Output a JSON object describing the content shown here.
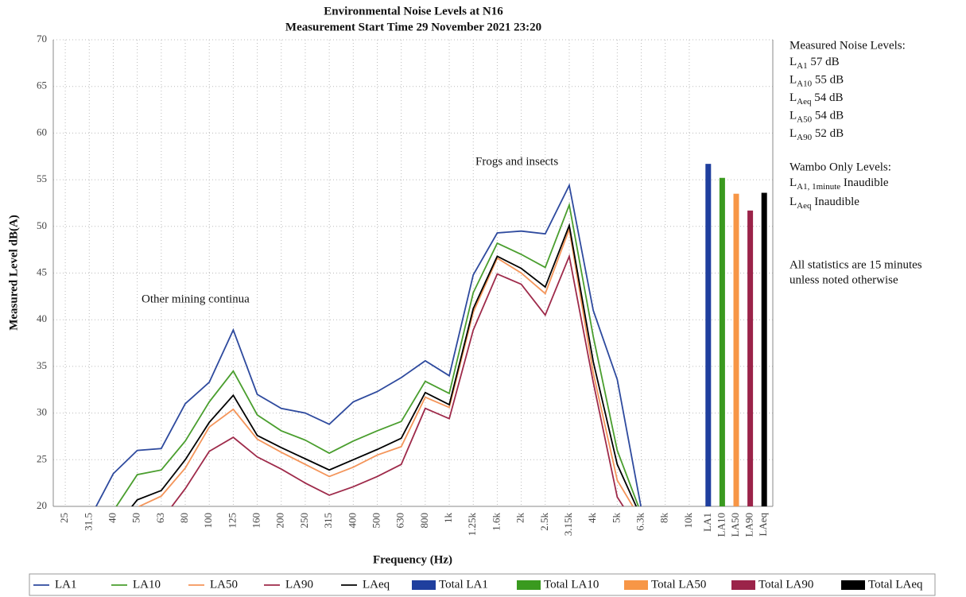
{
  "chart_data": {
    "type": "line",
    "title": "Environmental Noise Levels at N16",
    "subtitle": "Measurement Start Time 29 November 2021 23:20",
    "y_label": "Measured Level dB(A)",
    "x_label": "Frequency (Hz)",
    "categories": [
      "25",
      "31.5",
      "40",
      "50",
      "63",
      "80",
      "100",
      "125",
      "160",
      "200",
      "250",
      "315",
      "400",
      "500",
      "630",
      "800",
      "1k",
      "1.25k",
      "1.6k",
      "2k",
      "2.5k",
      "3.15k",
      "4k",
      "5k",
      "6.3k",
      "8k",
      "10k"
    ],
    "ylim": [
      20,
      70
    ],
    "yticks": [
      20,
      25,
      30,
      35,
      40,
      45,
      50,
      55,
      60,
      65,
      70
    ],
    "grid": true,
    "series": [
      {
        "name": "LA1",
        "color": "#2e4a9e",
        "values": [
          null,
          18.6,
          23.5,
          26.0,
          26.2,
          31.0,
          33.3,
          38.9,
          32.0,
          30.5,
          30.0,
          28.8,
          31.2,
          32.3,
          33.8,
          35.6,
          34.0,
          44.8,
          49.3,
          49.5,
          49.2,
          54.4,
          41.0,
          33.6,
          19.8,
          null,
          null
        ]
      },
      {
        "name": "LA10",
        "color": "#4a9e2e",
        "values": [
          null,
          null,
          19.5,
          23.4,
          23.9,
          27.0,
          31.2,
          34.5,
          29.8,
          28.1,
          27.1,
          25.7,
          27.0,
          28.1,
          29.1,
          33.4,
          32.1,
          42.9,
          48.2,
          47.0,
          45.6,
          52.3,
          38.2,
          26.0,
          19.2,
          null,
          null
        ]
      },
      {
        "name": "LA50",
        "color": "#f4955a",
        "values": [
          null,
          null,
          null,
          19.9,
          21.1,
          24.1,
          28.5,
          30.4,
          27.2,
          25.8,
          24.5,
          23.2,
          24.2,
          25.5,
          26.4,
          31.7,
          30.6,
          40.8,
          46.6,
          45.0,
          42.8,
          49.7,
          34.3,
          22.8,
          18.5,
          null,
          null
        ]
      },
      {
        "name": "LA90",
        "color": "#9e2a4a",
        "values": [
          null,
          null,
          null,
          null,
          18.5,
          21.9,
          25.9,
          27.4,
          25.3,
          24.0,
          22.5,
          21.2,
          22.1,
          23.2,
          24.5,
          30.5,
          29.4,
          38.9,
          44.9,
          43.8,
          40.5,
          46.8,
          33.3,
          21.0,
          17.0,
          null,
          null
        ]
      },
      {
        "name": "LAeq",
        "color": "#000000",
        "values": [
          null,
          null,
          17.5,
          20.7,
          21.7,
          25.0,
          29.0,
          31.9,
          27.6,
          26.3,
          25.1,
          23.9,
          25.0,
          26.1,
          27.3,
          32.2,
          30.9,
          41.2,
          46.8,
          45.5,
          43.5,
          50.1,
          35.5,
          24.5,
          18.8,
          null,
          null
        ]
      }
    ],
    "totals": {
      "categories": [
        "LA1",
        "LA10",
        "LA50",
        "LA90",
        "LAeq"
      ],
      "names": [
        "Total LA1",
        "Total LA10",
        "Total LA50",
        "Total LA90",
        "Total LAeq"
      ],
      "colors": [
        "#1f3f9e",
        "#3a9a1f",
        "#f79646",
        "#9b2349",
        "#000000"
      ],
      "values": [
        56.7,
        55.2,
        53.5,
        51.7,
        53.6
      ]
    },
    "annotations": [
      "Other mining continua",
      "Frogs and insects"
    ],
    "side_notes": {
      "measured_heading": "Measured Noise Levels:",
      "measured": [
        {
          "symbol": "L",
          "sub": "A1",
          "text": "57 dB"
        },
        {
          "symbol": "L",
          "sub": "A10",
          "text": "55 dB"
        },
        {
          "symbol": "L",
          "sub": "Aeq",
          "text": "54 dB"
        },
        {
          "symbol": "L",
          "sub": "A50",
          "text": "54 dB"
        },
        {
          "symbol": "L",
          "sub": "A90",
          "text": "52 dB"
        }
      ],
      "wambo_heading": "Wambo Only Levels:",
      "wambo": [
        {
          "symbol": "L",
          "sub": "A1, 1minute",
          "text": "Inaudible"
        },
        {
          "symbol": "L",
          "sub": "Aeq",
          "text": "Inaudible"
        }
      ],
      "footnote": [
        "All statistics are 15 minutes",
        "unless noted otherwise"
      ]
    }
  }
}
